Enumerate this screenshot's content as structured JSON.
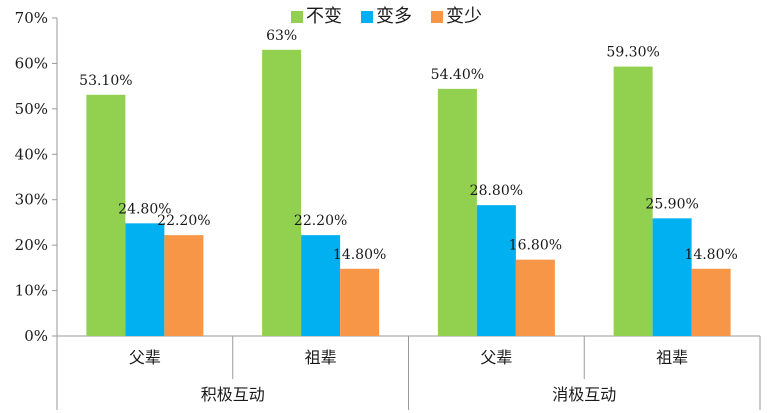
{
  "chart_data": {
    "type": "bar",
    "title": "",
    "xlabel": "",
    "ylabel": "",
    "ylim": [
      0,
      70
    ],
    "yticks": [
      0,
      10,
      20,
      30,
      40,
      50,
      60,
      70
    ],
    "ytick_labels": [
      "0%",
      "10%",
      "20%",
      "30%",
      "40%",
      "50%",
      "60%",
      "70%"
    ],
    "grid": false,
    "legend_position": "top",
    "groups": [
      {
        "label": "积极互动",
        "categories": [
          "父辈",
          "祖辈"
        ]
      },
      {
        "label": "消极互动",
        "categories": [
          "父辈",
          "祖辈"
        ]
      }
    ],
    "categories": [
      "父辈",
      "祖辈",
      "父辈",
      "祖辈"
    ],
    "series": [
      {
        "name": "不变",
        "color": "#92d050",
        "values": [
          53.1,
          63,
          54.4,
          59.3
        ],
        "labels": [
          "53.10%",
          "63%",
          "54.40%",
          "59.30%"
        ]
      },
      {
        "name": "变多",
        "color": "#00b0f0",
        "values": [
          24.8,
          22.2,
          28.8,
          25.9
        ],
        "labels": [
          "24.80%",
          "22.20%",
          "28.80%",
          "25.90%"
        ]
      },
      {
        "name": "变少",
        "color": "#f79646",
        "values": [
          22.2,
          14.8,
          16.8,
          14.8
        ],
        "labels": [
          "22.20%",
          "14.80%",
          "16.80%",
          "14.80%"
        ]
      }
    ]
  }
}
